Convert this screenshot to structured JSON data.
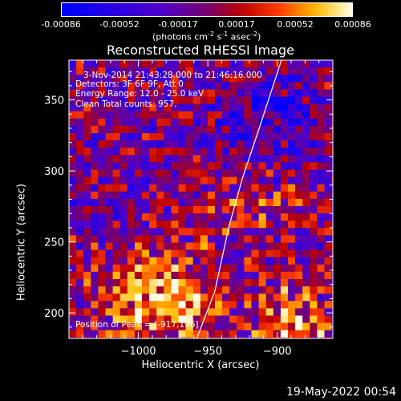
{
  "colorbar": {
    "ticks": [
      "-0.00086",
      "-0.00052",
      "-0.00017",
      "0.00017",
      "0.00052",
      "0.00086"
    ],
    "unit_label": "(photons cm",
    "unit_sup1": "-2",
    "unit_mid": " s",
    "unit_sup2": "-1",
    "unit_end": " asec",
    "unit_sup3": "-2",
    "unit_close": ")"
  },
  "chart_data": {
    "type": "heatmap",
    "title": "Reconstructed RHESSI Image",
    "xlabel": "Heliocentric X (arcsec)",
    "ylabel": "Heliocentric Y (arcsec)",
    "xlim": [
      -1050,
      -860
    ],
    "ylim": [
      182,
      378
    ],
    "x_ticks": [
      -1000,
      -950,
      -900
    ],
    "x_tick_labels": [
      "−1000",
      "−950",
      "−900"
    ],
    "y_ticks": [
      200,
      250,
      300,
      350
    ],
    "y_tick_labels": [
      "200",
      "250",
      "300",
      "350"
    ],
    "color_range": [
      -0.00086,
      0.00086
    ],
    "peak_position": [
      -917,
      196
    ],
    "limb_line": [
      [
        -958,
        182
      ],
      [
        -945,
        215
      ],
      [
        -935,
        260
      ],
      [
        -925,
        295
      ],
      [
        -913,
        330
      ],
      [
        -897,
        378
      ]
    ],
    "annotations": [
      "3-Nov-2014 21:43:28.000 to 21:46:16.000",
      "Detectors: 3F 6F 9F, Att 0",
      "Energy Range: 12.0 - 25.0 keV",
      "Clean     Total counts: 957.",
      "Position of Peak = [-917,196]"
    ]
  },
  "footer": {
    "timestamp": "19-May-2022 00:54"
  }
}
